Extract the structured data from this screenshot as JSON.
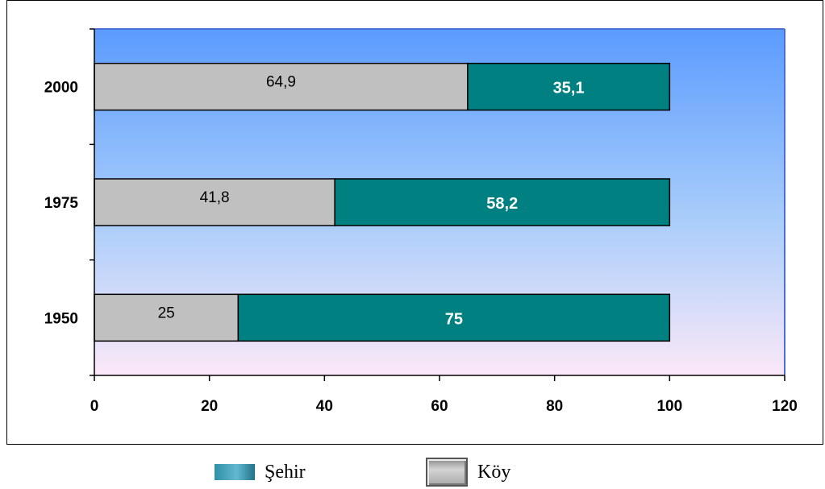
{
  "chart_data": {
    "type": "bar",
    "orientation": "horizontal",
    "stacked": true,
    "categories": [
      "1950",
      "1975",
      "2000"
    ],
    "series": [
      {
        "name": "Köy",
        "values": [
          25,
          41.8,
          64.9
        ],
        "labels": [
          "25",
          "41,8",
          "64,9"
        ],
        "color": "#c0c0c0"
      },
      {
        "name": "Şehir",
        "values": [
          75,
          58.2,
          35.1
        ],
        "labels": [
          "75",
          "58,2",
          "35,1"
        ],
        "color": "#008080"
      }
    ],
    "xlim": [
      0,
      120
    ],
    "xticks": [
      0,
      20,
      40,
      60,
      80,
      100,
      120
    ],
    "plot_background": [
      "#5b9bff",
      "#fbe8f8"
    ],
    "legend_position": "bottom",
    "grid": false
  },
  "legend": {
    "items": [
      {
        "label": "Şehir"
      },
      {
        "label": "Köy"
      }
    ]
  }
}
